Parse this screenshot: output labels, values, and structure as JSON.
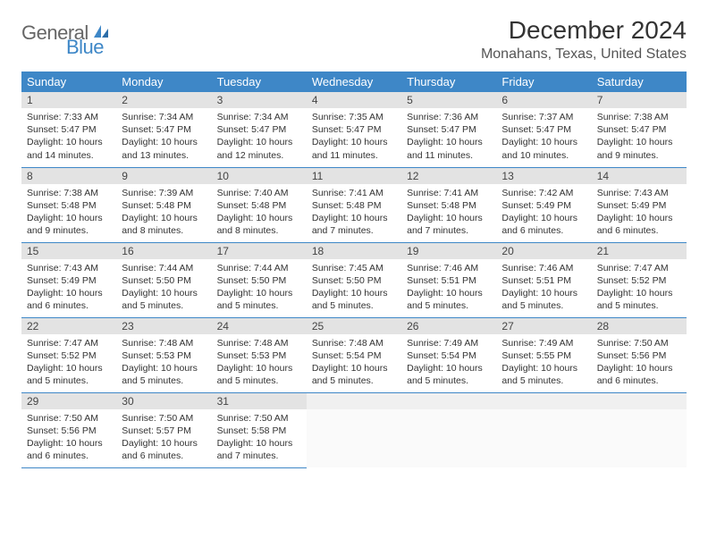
{
  "logo": {
    "general": "General",
    "blue": "Blue"
  },
  "title": "December 2024",
  "location": "Monahans, Texas, United States",
  "colors": {
    "header_bg": "#3E87C7",
    "header_text": "#ffffff",
    "daynum_bg": "#e3e3e3",
    "cell_border": "#3E87C7",
    "logo_gray": "#666666",
    "logo_blue": "#3E87C7"
  },
  "weekdays": [
    "Sunday",
    "Monday",
    "Tuesday",
    "Wednesday",
    "Thursday",
    "Friday",
    "Saturday"
  ],
  "weeks": [
    [
      {
        "n": "1",
        "sunrise": "7:33 AM",
        "sunset": "5:47 PM",
        "daylight": "10 hours and 14 minutes."
      },
      {
        "n": "2",
        "sunrise": "7:34 AM",
        "sunset": "5:47 PM",
        "daylight": "10 hours and 13 minutes."
      },
      {
        "n": "3",
        "sunrise": "7:34 AM",
        "sunset": "5:47 PM",
        "daylight": "10 hours and 12 minutes."
      },
      {
        "n": "4",
        "sunrise": "7:35 AM",
        "sunset": "5:47 PM",
        "daylight": "10 hours and 11 minutes."
      },
      {
        "n": "5",
        "sunrise": "7:36 AM",
        "sunset": "5:47 PM",
        "daylight": "10 hours and 11 minutes."
      },
      {
        "n": "6",
        "sunrise": "7:37 AM",
        "sunset": "5:47 PM",
        "daylight": "10 hours and 10 minutes."
      },
      {
        "n": "7",
        "sunrise": "7:38 AM",
        "sunset": "5:47 PM",
        "daylight": "10 hours and 9 minutes."
      }
    ],
    [
      {
        "n": "8",
        "sunrise": "7:38 AM",
        "sunset": "5:48 PM",
        "daylight": "10 hours and 9 minutes."
      },
      {
        "n": "9",
        "sunrise": "7:39 AM",
        "sunset": "5:48 PM",
        "daylight": "10 hours and 8 minutes."
      },
      {
        "n": "10",
        "sunrise": "7:40 AM",
        "sunset": "5:48 PM",
        "daylight": "10 hours and 8 minutes."
      },
      {
        "n": "11",
        "sunrise": "7:41 AM",
        "sunset": "5:48 PM",
        "daylight": "10 hours and 7 minutes."
      },
      {
        "n": "12",
        "sunrise": "7:41 AM",
        "sunset": "5:48 PM",
        "daylight": "10 hours and 7 minutes."
      },
      {
        "n": "13",
        "sunrise": "7:42 AM",
        "sunset": "5:49 PM",
        "daylight": "10 hours and 6 minutes."
      },
      {
        "n": "14",
        "sunrise": "7:43 AM",
        "sunset": "5:49 PM",
        "daylight": "10 hours and 6 minutes."
      }
    ],
    [
      {
        "n": "15",
        "sunrise": "7:43 AM",
        "sunset": "5:49 PM",
        "daylight": "10 hours and 6 minutes."
      },
      {
        "n": "16",
        "sunrise": "7:44 AM",
        "sunset": "5:50 PM",
        "daylight": "10 hours and 5 minutes."
      },
      {
        "n": "17",
        "sunrise": "7:44 AM",
        "sunset": "5:50 PM",
        "daylight": "10 hours and 5 minutes."
      },
      {
        "n": "18",
        "sunrise": "7:45 AM",
        "sunset": "5:50 PM",
        "daylight": "10 hours and 5 minutes."
      },
      {
        "n": "19",
        "sunrise": "7:46 AM",
        "sunset": "5:51 PM",
        "daylight": "10 hours and 5 minutes."
      },
      {
        "n": "20",
        "sunrise": "7:46 AM",
        "sunset": "5:51 PM",
        "daylight": "10 hours and 5 minutes."
      },
      {
        "n": "21",
        "sunrise": "7:47 AM",
        "sunset": "5:52 PM",
        "daylight": "10 hours and 5 minutes."
      }
    ],
    [
      {
        "n": "22",
        "sunrise": "7:47 AM",
        "sunset": "5:52 PM",
        "daylight": "10 hours and 5 minutes."
      },
      {
        "n": "23",
        "sunrise": "7:48 AM",
        "sunset": "5:53 PM",
        "daylight": "10 hours and 5 minutes."
      },
      {
        "n": "24",
        "sunrise": "7:48 AM",
        "sunset": "5:53 PM",
        "daylight": "10 hours and 5 minutes."
      },
      {
        "n": "25",
        "sunrise": "7:48 AM",
        "sunset": "5:54 PM",
        "daylight": "10 hours and 5 minutes."
      },
      {
        "n": "26",
        "sunrise": "7:49 AM",
        "sunset": "5:54 PM",
        "daylight": "10 hours and 5 minutes."
      },
      {
        "n": "27",
        "sunrise": "7:49 AM",
        "sunset": "5:55 PM",
        "daylight": "10 hours and 5 minutes."
      },
      {
        "n": "28",
        "sunrise": "7:50 AM",
        "sunset": "5:56 PM",
        "daylight": "10 hours and 6 minutes."
      }
    ],
    [
      {
        "n": "29",
        "sunrise": "7:50 AM",
        "sunset": "5:56 PM",
        "daylight": "10 hours and 6 minutes."
      },
      {
        "n": "30",
        "sunrise": "7:50 AM",
        "sunset": "5:57 PM",
        "daylight": "10 hours and 6 minutes."
      },
      {
        "n": "31",
        "sunrise": "7:50 AM",
        "sunset": "5:58 PM",
        "daylight": "10 hours and 7 minutes."
      },
      null,
      null,
      null,
      null
    ]
  ],
  "labels": {
    "sunrise": "Sunrise:",
    "sunset": "Sunset:",
    "daylight": "Daylight:"
  }
}
